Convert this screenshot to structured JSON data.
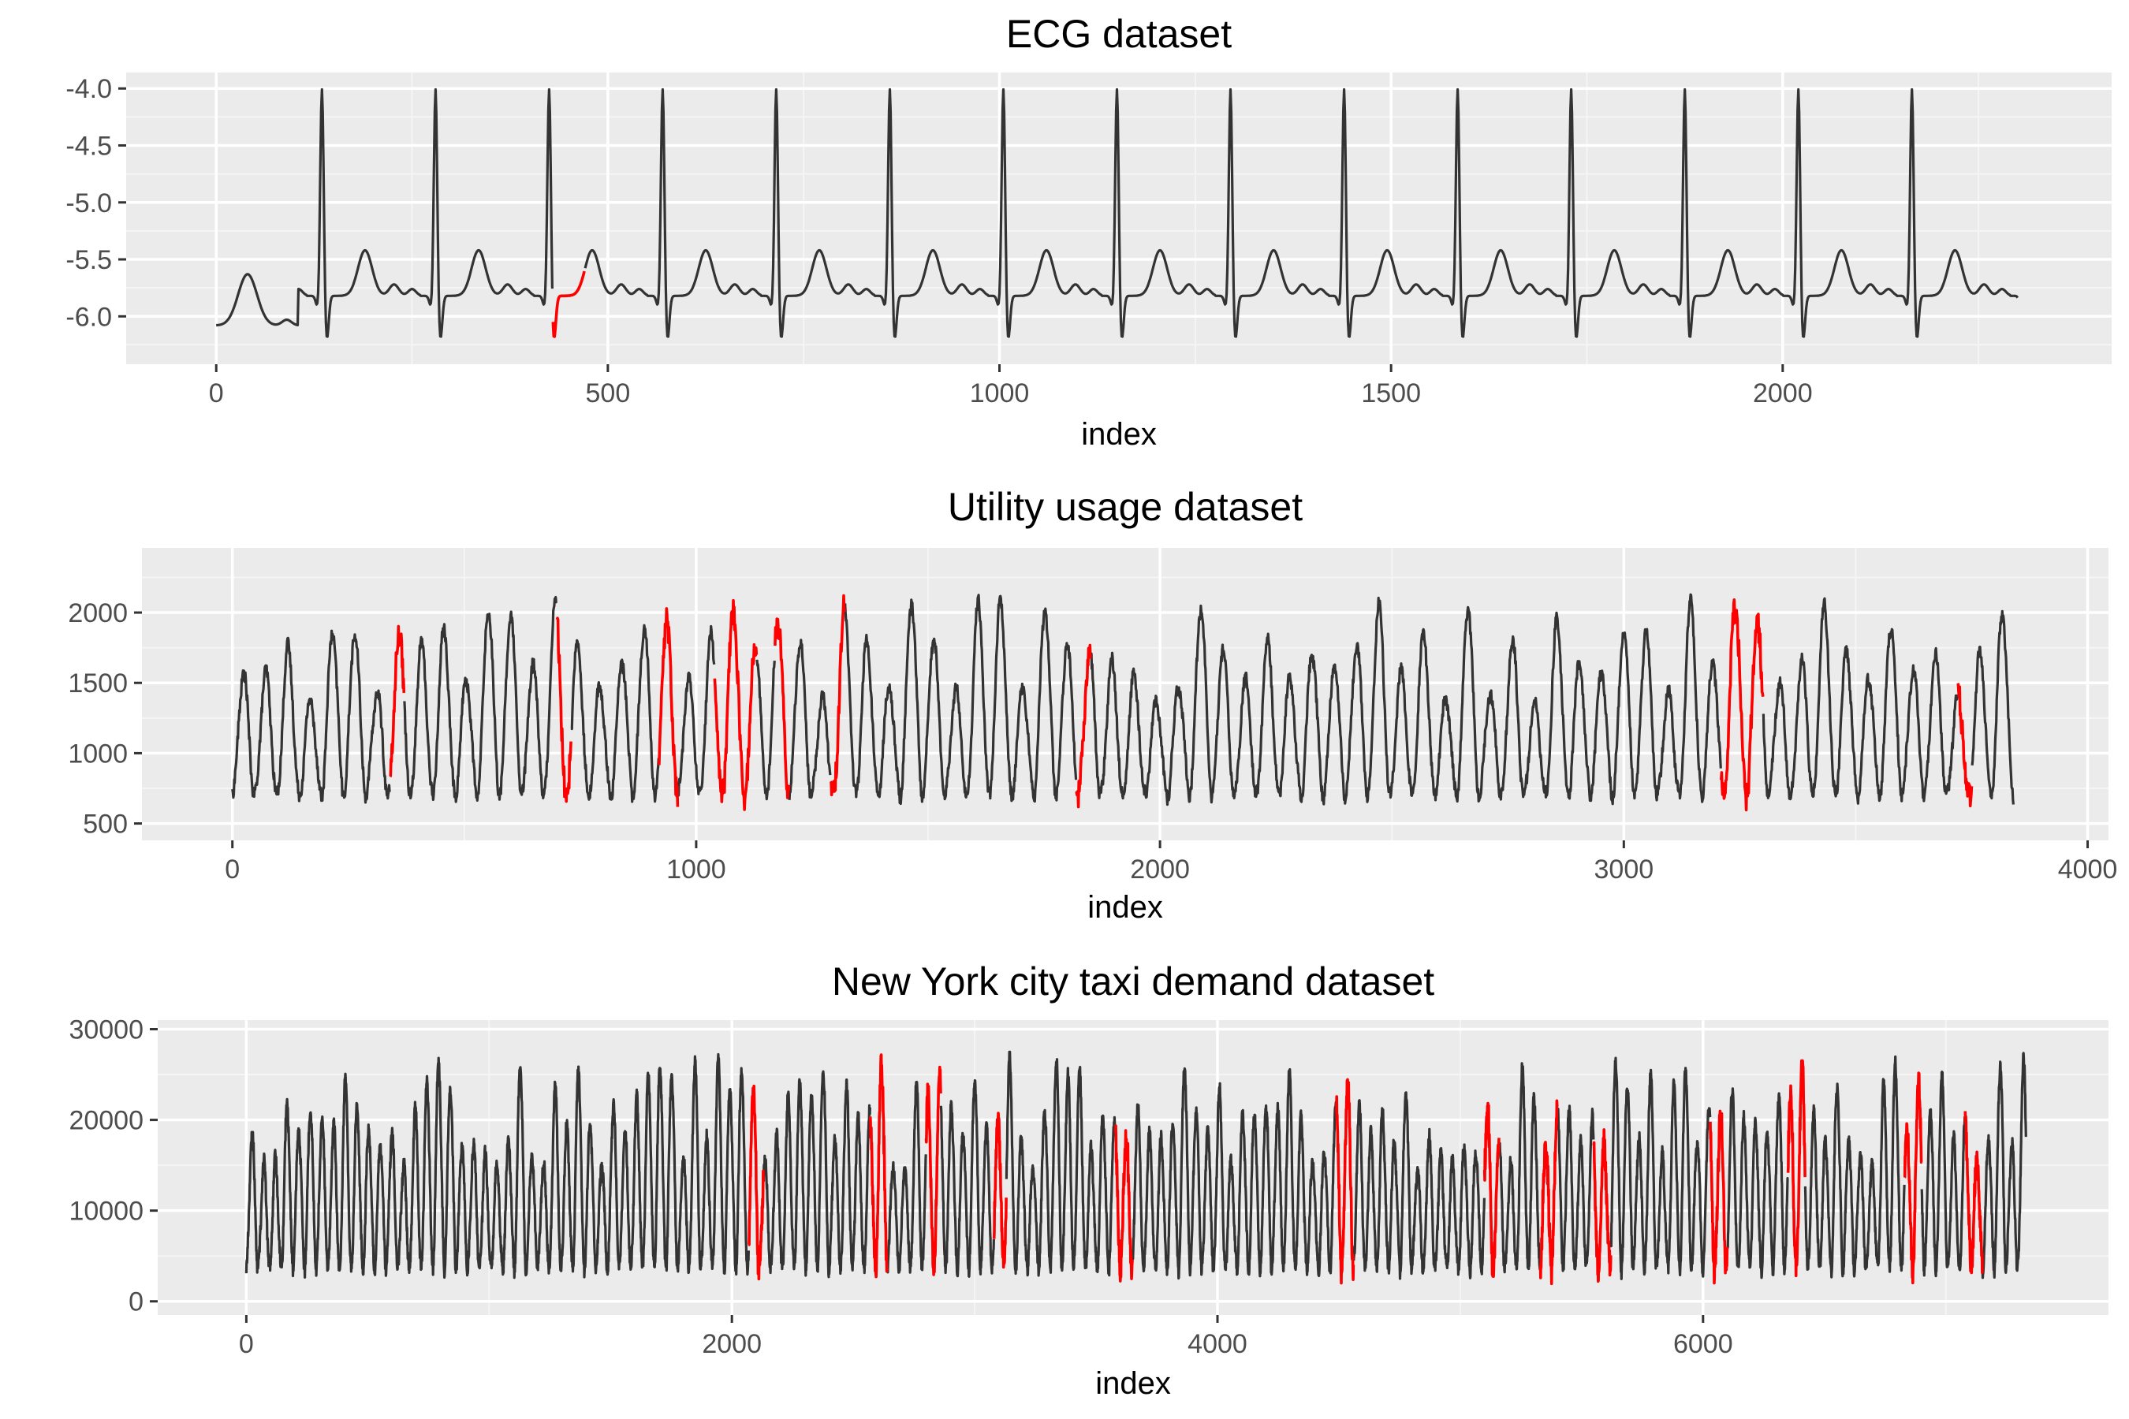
{
  "colors": {
    "panel": "#ebebeb",
    "grid_major": "#ffffff",
    "grid_minor": "#f5f5f5",
    "series_normal": "#333333",
    "series_anomaly": "#ff0000",
    "tick_text": "#4d4d4d"
  },
  "chart_data": [
    {
      "type": "line",
      "title": "ECG dataset",
      "xlabel": "index",
      "ylabel": "",
      "xlim": [
        -115,
        2420
      ],
      "ylim": [
        -6.42,
        -3.86
      ],
      "x_ticks": [
        0,
        500,
        1000,
        1500,
        2000
      ],
      "x_tick_labels": [
        "0",
        "500",
        "1000",
        "1500",
        "2000"
      ],
      "y_ticks": [
        -4.0,
        -4.5,
        -5.0,
        -5.5,
        -6.0
      ],
      "y_tick_labels": [
        "-4.0",
        "-4.5",
        "-5.0",
        "-5.5",
        "-6.0"
      ],
      "grid": true,
      "legend": "none",
      "x_range": [
        0,
        2300
      ],
      "pattern": "ecg",
      "beat_period": 145,
      "first_r_peak": 135,
      "baseline": -5.82,
      "anomaly_ranges": [
        [
          430,
          470
        ]
      ]
    },
    {
      "type": "line",
      "title": "Utility usage dataset",
      "xlabel": "index",
      "ylabel": "",
      "xlim": [
        -195,
        4045
      ],
      "ylim": [
        380,
        2460
      ],
      "x_ticks": [
        0,
        1000,
        2000,
        3000,
        4000
      ],
      "x_tick_labels": [
        "0",
        "1000",
        "2000",
        "3000",
        "4000"
      ],
      "y_ticks": [
        500,
        1000,
        1500,
        2000
      ],
      "y_tick_labels": [
        "500",
        "1000",
        "1500",
        "2000"
      ],
      "grid": true,
      "legend": "none",
      "x_range": [
        0,
        3840
      ],
      "pattern": "daily",
      "period": 48,
      "min_value": 480,
      "max_value": 2310,
      "anomaly_ranges": [
        [
          340,
          370
        ],
        [
          700,
          730
        ],
        [
          920,
          960
        ],
        [
          1040,
          1130
        ],
        [
          1170,
          1200
        ],
        [
          1290,
          1320
        ],
        [
          1820,
          1850
        ],
        [
          3210,
          3300
        ],
        [
          3720,
          3750
        ]
      ]
    },
    {
      "type": "line",
      "title": "New York city taxi demand dataset",
      "xlabel": "index",
      "ylabel": "",
      "xlim": [
        -365,
        7670
      ],
      "ylim": [
        -1500,
        31000
      ],
      "x_ticks": [
        0,
        2000,
        4000,
        6000
      ],
      "x_tick_labels": [
        "0",
        "2000",
        "4000",
        "6000"
      ],
      "y_ticks": [
        0,
        10000,
        20000,
        30000
      ],
      "y_tick_labels": [
        "0",
        "10000",
        "20000",
        "30000"
      ],
      "grid": true,
      "legend": "none",
      "x_range": [
        0,
        7330
      ],
      "pattern": "daily",
      "period": 48,
      "min_value": 0,
      "max_value": 30300,
      "anomaly_ranges": [
        [
          2070,
          2130
        ],
        [
          2570,
          2640
        ],
        [
          2800,
          2860
        ],
        [
          3080,
          3130
        ],
        [
          3580,
          3650
        ],
        [
          4490,
          4560
        ],
        [
          5100,
          5160
        ],
        [
          5330,
          5400
        ],
        [
          5550,
          5620
        ],
        [
          6030,
          6100
        ],
        [
          6350,
          6420
        ],
        [
          6830,
          6900
        ],
        [
          7080,
          7150
        ]
      ]
    }
  ]
}
